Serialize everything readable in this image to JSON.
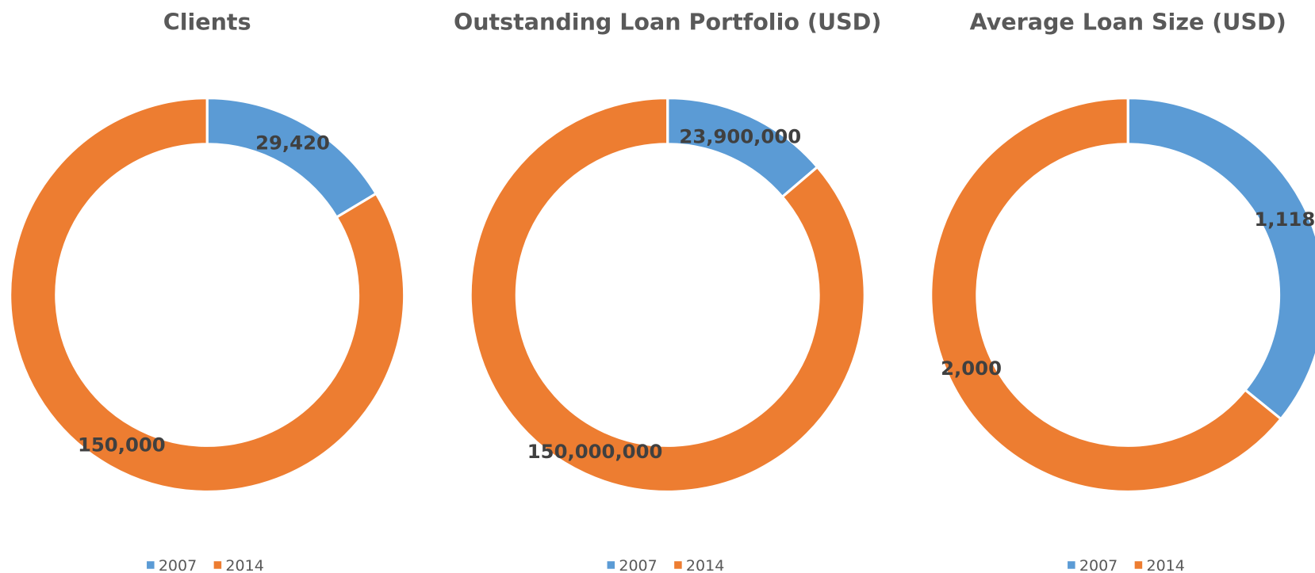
{
  "chart_data": [
    {
      "type": "donut",
      "title": "Clients",
      "categories": [
        "2007",
        "2014"
      ],
      "colors": [
        "#5b9bd5",
        "#ed7d31"
      ],
      "values": [
        29420,
        150000
      ],
      "value_labels": [
        "29,420",
        "150,000"
      ],
      "legend": "bottom"
    },
    {
      "type": "donut",
      "title": "Outstanding Loan Portfolio (USD)",
      "categories": [
        "2007",
        "2014"
      ],
      "colors": [
        "#5b9bd5",
        "#ed7d31"
      ],
      "values": [
        23900000,
        150000000
      ],
      "value_labels": [
        "23,900,000",
        "150,000,000"
      ],
      "legend": "bottom"
    },
    {
      "type": "donut",
      "title": "Average Loan Size (USD)",
      "categories": [
        "2007",
        "2014"
      ],
      "colors": [
        "#5b9bd5",
        "#ed7d31"
      ],
      "values": [
        1118,
        2000
      ],
      "value_labels": [
        "1,118",
        "2,000"
      ],
      "legend": "bottom"
    }
  ]
}
